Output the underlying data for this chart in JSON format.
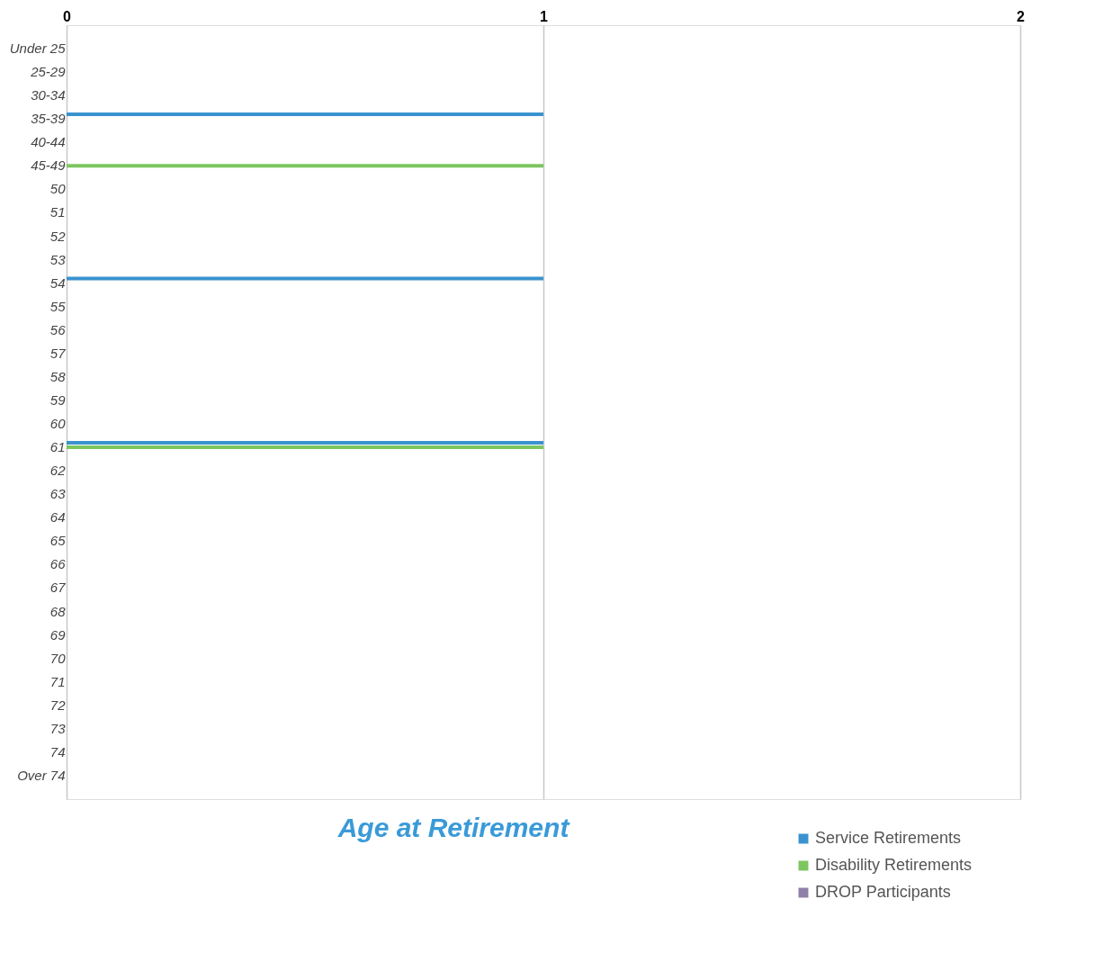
{
  "chart_data": {
    "type": "bar",
    "orientation": "horizontal",
    "title": "Age at Retirement",
    "categories": [
      "Under 25",
      "25-29",
      "30-34",
      "35-39",
      "40-44",
      "45-49",
      "50",
      "51",
      "52",
      "53",
      "54",
      "55",
      "56",
      "57",
      "58",
      "59",
      "60",
      "61",
      "62",
      "63",
      "64",
      "65",
      "66",
      "67",
      "68",
      "69",
      "70",
      "71",
      "72",
      "73",
      "74",
      "Over 74"
    ],
    "series": [
      {
        "name": "Service Retirements",
        "color": "#3a93cf",
        "values": [
          0,
          0,
          0,
          1,
          0,
          0,
          0,
          0,
          0,
          0,
          1,
          0,
          0,
          0,
          0,
          0,
          0,
          1,
          0,
          0,
          0,
          0,
          0,
          0,
          0,
          0,
          0,
          0,
          0,
          0,
          0,
          0
        ]
      },
      {
        "name": "Disability Retirements",
        "color": "#7cc65f",
        "values": [
          0,
          0,
          0,
          0,
          0,
          1,
          0,
          0,
          0,
          0,
          0,
          0,
          0,
          0,
          0,
          0,
          0,
          1,
          0,
          0,
          0,
          0,
          0,
          0,
          0,
          0,
          0,
          0,
          0,
          0,
          0,
          0
        ]
      },
      {
        "name": "DROP Participants",
        "color": "#9080a8",
        "values": [
          0,
          0,
          0,
          0,
          0,
          0,
          0,
          0,
          0,
          0,
          0,
          0,
          0,
          0,
          0,
          0,
          0,
          0,
          0,
          0,
          0,
          0,
          0,
          0,
          0,
          0,
          0,
          0,
          0,
          0,
          0,
          0
        ]
      }
    ],
    "xlim": [
      0,
      2
    ],
    "xticks": [
      0,
      1,
      2
    ],
    "grid": "x",
    "legend": "bottom right"
  }
}
